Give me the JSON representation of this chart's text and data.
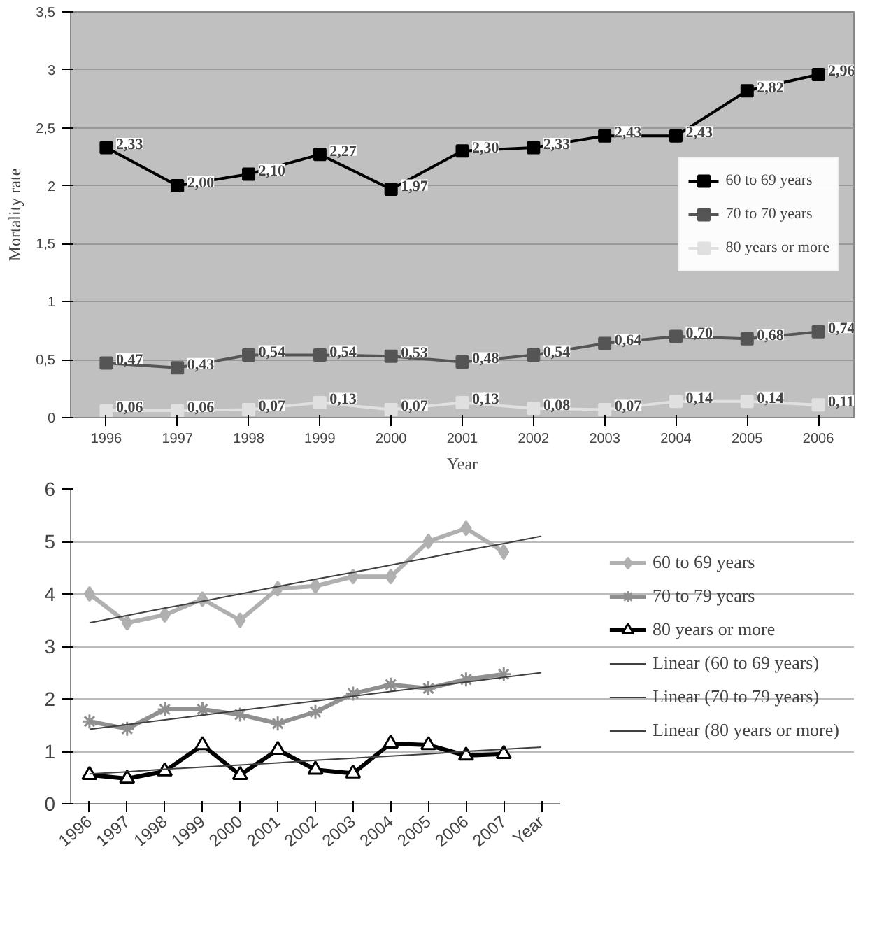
{
  "chart_data": [
    {
      "type": "line",
      "xlabel": "Year",
      "ylabel": "Mortality rate",
      "categories": [
        "1996",
        "1997",
        "1998",
        "1999",
        "2000",
        "2001",
        "2002",
        "2003",
        "2004",
        "2005",
        "2006"
      ],
      "ylim": [
        0,
        3.5
      ],
      "yticks": [
        0,
        {
          "value": 0.5,
          "label": "0,5"
        },
        1,
        {
          "value": 1.5,
          "label": "1,5"
        },
        2,
        {
          "value": 2.5,
          "label": "2,5"
        },
        3,
        {
          "value": 3.5,
          "label": "3,5"
        }
      ],
      "grid": "y",
      "legend": "right",
      "marker": "square",
      "series": [
        {
          "name": "60 to 69 years",
          "color": "#000000",
          "values": [
            2.33,
            2.0,
            2.1,
            2.27,
            1.97,
            2.3,
            2.33,
            2.43,
            2.43,
            2.82,
            2.96
          ],
          "value_labels": [
            "2,33",
            "2,00",
            "2,10",
            "2,27",
            "1,97",
            "2,30",
            "2,33",
            "2,43",
            "2,43",
            "2,82",
            "2,96"
          ]
        },
        {
          "name": "70 to 70 years",
          "color": "#555555",
          "values": [
            0.47,
            0.43,
            0.54,
            0.54,
            0.53,
            0.48,
            0.54,
            0.64,
            0.7,
            0.68,
            0.74
          ],
          "value_labels": [
            "0,47",
            "0,43",
            "0,54",
            "0,54",
            "0,53",
            "0,48",
            "0,54",
            "0,64",
            "0,70",
            "0,68",
            "0,74"
          ]
        },
        {
          "name": "80 years or more",
          "color": "#e0e0e0",
          "values": [
            0.06,
            0.06,
            0.07,
            0.13,
            0.07,
            0.13,
            0.08,
            0.07,
            0.14,
            0.14,
            0.11
          ],
          "value_labels": [
            "0,06",
            "0,06",
            "0,07",
            "0,13",
            "0,07",
            "0,13",
            "0,08",
            "0,07",
            "0,14",
            "0,14",
            "0,11"
          ]
        }
      ]
    },
    {
      "type": "line",
      "categories": [
        "1996",
        "1997",
        "1998",
        "1999",
        "2000",
        "2001",
        "2002",
        "2003",
        "2004",
        "2005",
        "2006",
        "2007",
        "Year"
      ],
      "ylim": [
        0,
        6
      ],
      "yticks": [
        0,
        1,
        2,
        3,
        4,
        5,
        6
      ],
      "grid": "y",
      "legend": "right",
      "series": [
        {
          "name": "60 to 69 years",
          "color": "#b0b0b0",
          "marker": "diamond",
          "values": [
            4.0,
            3.45,
            3.6,
            3.9,
            3.5,
            4.1,
            4.15,
            4.33,
            4.33,
            5.0,
            5.25,
            4.8,
            null
          ]
        },
        {
          "name": "70 to 79 years",
          "color": "#909090",
          "marker": "cross",
          "values": [
            1.57,
            1.43,
            1.8,
            1.8,
            1.7,
            1.53,
            1.75,
            2.1,
            2.27,
            2.2,
            2.37,
            2.47,
            null
          ]
        },
        {
          "name": "80 years or more",
          "color": "#000000",
          "marker": "triangle",
          "values": [
            0.55,
            0.48,
            0.62,
            1.12,
            0.55,
            1.03,
            0.65,
            0.58,
            1.15,
            1.12,
            0.92,
            0.95,
            null
          ]
        },
        {
          "name": "Linear (60 to 69 years)",
          "color": "#404040",
          "marker": "none",
          "values": [
            3.45,
            3.59,
            3.73,
            3.86,
            4.0,
            4.14,
            4.28,
            4.41,
            4.55,
            4.69,
            4.83,
            4.96,
            5.1
          ]
        },
        {
          "name": "Linear (70 to 79 years)",
          "color": "#404040",
          "marker": "none",
          "values": [
            1.42,
            1.51,
            1.6,
            1.69,
            1.78,
            1.87,
            1.96,
            2.05,
            2.14,
            2.23,
            2.32,
            2.41,
            2.5
          ]
        },
        {
          "name": "Linear (80 years or more)",
          "color": "#404040",
          "marker": "none",
          "values": [
            0.57,
            0.61,
            0.66,
            0.7,
            0.74,
            0.78,
            0.83,
            0.87,
            0.91,
            0.95,
            1.0,
            1.04,
            1.08
          ]
        }
      ]
    }
  ]
}
